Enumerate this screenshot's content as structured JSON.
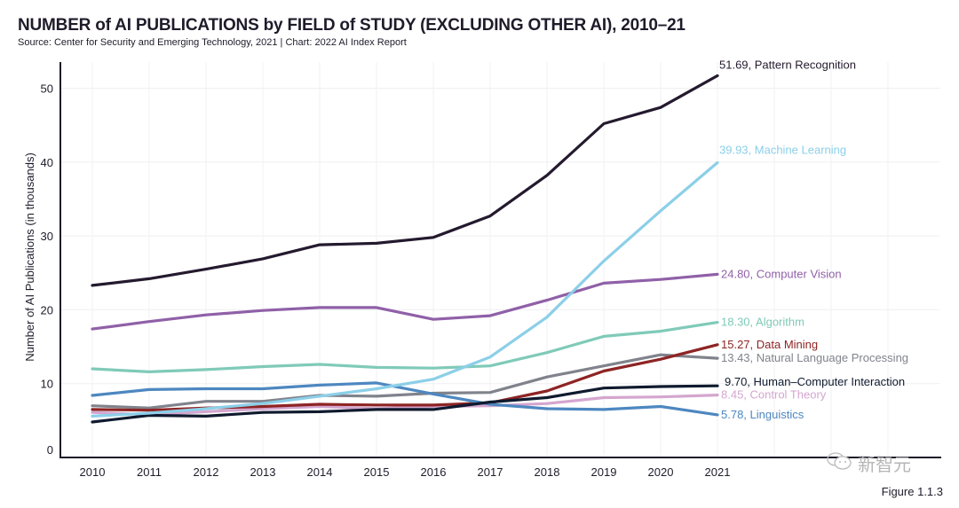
{
  "figure_label": "Figure 1.1.3",
  "watermark": {
    "icon": "wechat-icon",
    "text": "新智元"
  },
  "chart_data": {
    "type": "line",
    "title": "NUMBER of AI PUBLICATIONS by FIELD of STUDY (EXCLUDING OTHER AI), 2010–21",
    "subtitle": "Source: Center for Security and Emerging Technology, 2021 | Chart: 2022 AI Index Report",
    "xlabel": "",
    "ylabel": "Number of AI Publications (in thousands)",
    "x": [
      "2010",
      "2011",
      "2012",
      "2013",
      "2014",
      "2015",
      "2016",
      "2017",
      "2018",
      "2019",
      "2020",
      "2021"
    ],
    "yticks": [
      0,
      10,
      20,
      30,
      40,
      50
    ],
    "ylim": [
      0,
      55
    ],
    "grid": true,
    "legend": "end-of-line labels, right",
    "series": [
      {
        "name": "Pattern Recognition",
        "color": "#241a2e",
        "label": "51.69, Pattern Recognition",
        "values": [
          23.3,
          24.2,
          25.5,
          26.9,
          28.8,
          29.0,
          29.8,
          32.7,
          38.2,
          45.2,
          47.4,
          51.69
        ]
      },
      {
        "name": "Machine Learning",
        "color": "#8ccfe8",
        "label": "39.93, Machine Learning",
        "values": [
          5.6,
          6.0,
          6.6,
          7.3,
          8.3,
          9.3,
          10.6,
          13.6,
          19.0,
          26.6,
          33.4,
          39.93
        ]
      },
      {
        "name": "Computer Vision",
        "color": "#9060a8",
        "label": "24.80, Computer Vision",
        "values": [
          17.4,
          18.4,
          19.3,
          19.9,
          20.3,
          20.3,
          18.7,
          19.2,
          21.3,
          23.6,
          24.1,
          24.8
        ]
      },
      {
        "name": "Algorithm",
        "color": "#7fcab8",
        "label": "18.30, Algorithm",
        "values": [
          12.0,
          11.6,
          11.9,
          12.3,
          12.6,
          12.2,
          12.1,
          12.4,
          14.2,
          16.4,
          17.1,
          18.3
        ]
      },
      {
        "name": "Data Mining",
        "color": "#8e2424",
        "label": "15.27, Data Mining",
        "values": [
          6.5,
          6.4,
          6.7,
          6.9,
          7.2,
          7.1,
          7.1,
          7.4,
          9.0,
          11.7,
          13.3,
          15.27
        ]
      },
      {
        "name": "Natural Language Processing",
        "color": "#80838c",
        "label": "13.43, Natural Language Processing",
        "values": [
          7.0,
          6.7,
          7.6,
          7.6,
          8.4,
          8.3,
          8.7,
          8.8,
          10.9,
          12.4,
          13.9,
          13.43
        ]
      },
      {
        "name": "Human–Computer Interaction",
        "color": "#0f1a2e",
        "label": "9.70, Human–Computer Interaction",
        "values": [
          4.8,
          5.7,
          5.6,
          6.1,
          6.2,
          6.5,
          6.5,
          7.5,
          8.1,
          9.4,
          9.6,
          9.7
        ]
      },
      {
        "name": "Control Theory",
        "color": "#d4a6cf",
        "label": "8.45, Control Theory",
        "values": [
          6.1,
          5.8,
          6.2,
          6.6,
          6.9,
          6.6,
          6.9,
          7.0,
          7.3,
          8.1,
          8.2,
          8.45
        ]
      },
      {
        "name": "Linguistics",
        "color": "#4d87c0",
        "label": "5.78, Linguistics",
        "values": [
          8.4,
          9.2,
          9.3,
          9.3,
          9.8,
          10.1,
          8.6,
          7.2,
          6.6,
          6.5,
          6.9,
          5.78
        ]
      }
    ]
  }
}
